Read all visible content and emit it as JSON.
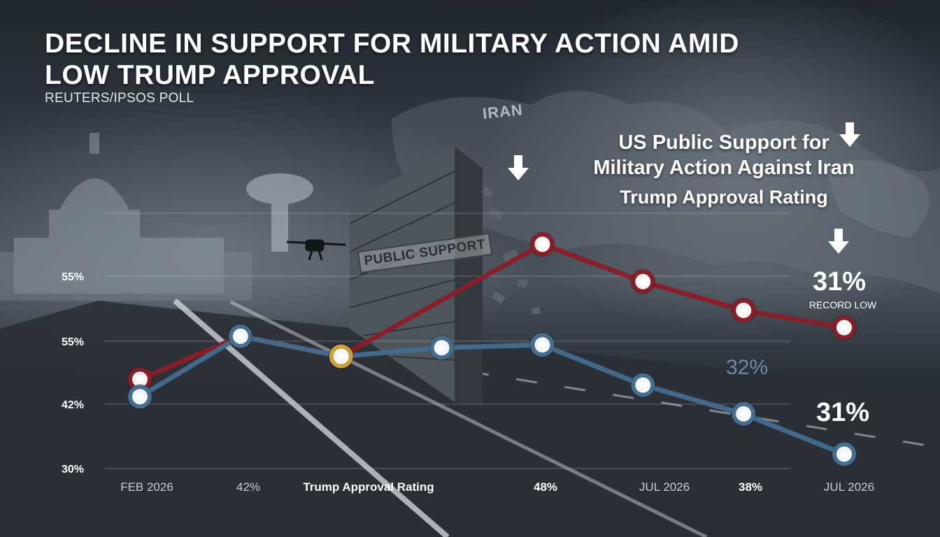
{
  "title": "DECLINE IN SUPPORT FOR MILITARY ACTION AMID LOW TRUMP APPROVAL",
  "subtitle": "REUTERS/IPSOS POLL",
  "legend": {
    "line1": "US Public Support for",
    "line2": "Military Action Against Iran",
    "line3": "Trump Approval Rating"
  },
  "map_label": "IRAN",
  "wall_label": "PUBLIC SUPPORT",
  "annotations": {
    "record_value": "31%",
    "record_note": "RECORD LOW",
    "mid_value": "32%",
    "end_value": "31%"
  },
  "colors": {
    "support_line": "#8a1e28",
    "approval_line": "#456d8e",
    "highlight_marker": "#c9a23c",
    "text": "#ffffff"
  },
  "chart_data": {
    "type": "line",
    "y_tick_labels": [
      "55%",
      "55%",
      "42%",
      "30%"
    ],
    "x_tick_labels": [
      "FEB 2026",
      "42%",
      "Trump Approval Rating",
      "48%",
      "JUL 2026",
      "38%",
      "JUL 2026"
    ],
    "series": [
      {
        "key": "support",
        "color": "#8a1e28",
        "x": [
          0,
          1,
          2,
          4,
          5,
          6,
          7
        ],
        "y": [
          45.5,
          53,
          49.5,
          69,
          62.5,
          57.5,
          54.5
        ]
      },
      {
        "key": "approval",
        "color": "#456d8e",
        "x": [
          0,
          1,
          2,
          3,
          4,
          5,
          6,
          7
        ],
        "y": [
          42.5,
          53,
          49.5,
          51,
          51.5,
          44.5,
          39.5,
          32.5
        ]
      }
    ],
    "highlight_point": {
      "series": "approval",
      "x": 2
    },
    "ylim": [
      30,
      75
    ],
    "xlim": [
      0,
      7
    ],
    "grid": false
  }
}
